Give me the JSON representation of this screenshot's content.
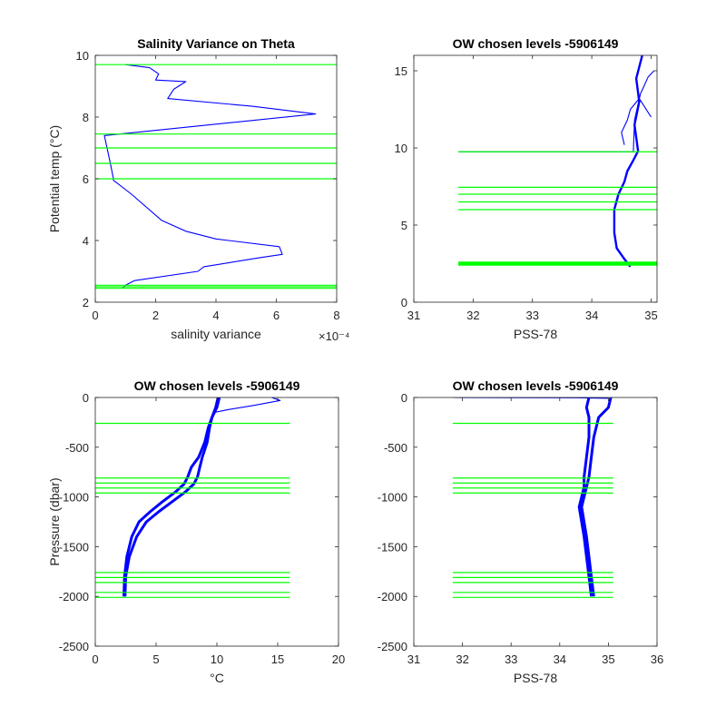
{
  "chart_data": [
    {
      "type": "line",
      "title": "Salinity Variance on Theta",
      "xlabel": "salinity variance",
      "ylabel": "Potential temp (°C)",
      "x_exponent_label": "×10⁻⁴",
      "xlim": [
        0,
        8
      ],
      "ylim": [
        2,
        10
      ],
      "xticks": [
        0,
        2,
        4,
        6,
        8
      ],
      "yticks": [
        2,
        4,
        6,
        8,
        10
      ],
      "grid": false,
      "colors": {
        "series": "#0000ff",
        "levels": "#00ff00"
      },
      "series": [
        {
          "x": [
            0.9,
            1.0,
            1.3,
            3.4,
            3.6,
            5.5,
            6.2,
            6.1,
            4.0,
            3.0,
            2.2,
            1.2,
            0.6,
            0.6,
            0.5,
            0.3,
            7.3,
            5.2,
            2.4,
            2.6,
            3.0,
            2.0,
            2.1,
            1.8,
            1.0
          ],
          "y": [
            2.45,
            2.55,
            2.7,
            3.0,
            3.15,
            3.45,
            3.55,
            3.8,
            4.05,
            4.3,
            4.65,
            5.5,
            5.95,
            6.0,
            6.5,
            7.4,
            8.1,
            8.35,
            8.6,
            8.9,
            9.15,
            9.2,
            9.4,
            9.6,
            9.7
          ]
        }
      ],
      "levels": [
        2.45,
        2.5,
        2.55,
        6.0,
        6.5,
        7.0,
        7.45,
        9.7
      ],
      "levels_xrange": [
        0,
        8
      ]
    },
    {
      "type": "line",
      "title": "OW chosen levels -5906149",
      "xlabel": "PSS-78",
      "ylabel": "",
      "xlim": [
        31,
        35.1
      ],
      "ylim": [
        0,
        16
      ],
      "xticks": [
        31,
        32,
        33,
        34,
        35
      ],
      "yticks": [
        0,
        5,
        10,
        15
      ],
      "grid": false,
      "colors": {
        "series": "#0000ff",
        "levels": "#00ff00"
      },
      "series": [
        {
          "x": [
            34.65,
            34.55,
            34.42,
            34.38,
            34.38,
            34.45,
            34.55,
            34.6,
            34.7,
            34.78,
            34.72,
            34.8,
            34.75,
            34.85
          ],
          "y": [
            2.3,
            2.8,
            3.5,
            4.5,
            6.0,
            7.0,
            7.8,
            8.5,
            9.2,
            9.8,
            11.5,
            13.0,
            14.5,
            16.0
          ]
        },
        {
          "x": [
            34.7,
            34.72,
            34.82,
            34.95,
            35.05
          ],
          "y": [
            9.8,
            11.8,
            13.5,
            14.6,
            15.0
          ]
        },
        {
          "x": [
            34.55,
            34.5,
            34.6,
            34.65,
            34.8,
            35.0
          ],
          "y": [
            10.2,
            11.0,
            11.8,
            12.5,
            13.2,
            12.0
          ]
        },
        {
          "x": [
            31.75,
            34.72
          ],
          "y": [
            9.75,
            9.75
          ]
        }
      ],
      "levels": [
        2.4,
        2.45,
        2.5,
        2.55,
        2.6,
        6.0,
        6.5,
        7.0,
        7.45,
        9.75
      ],
      "levels_xrange": [
        31.75,
        35.1
      ]
    },
    {
      "type": "line",
      "title": "OW chosen levels -5906149",
      "xlabel": "°C",
      "ylabel": "Pressure (dbar)",
      "xlim": [
        0,
        20
      ],
      "ylim": [
        -2500,
        0
      ],
      "xticks": [
        0,
        5,
        10,
        15,
        20
      ],
      "yticks": [
        -2500,
        -2000,
        -1500,
        -1000,
        -500,
        0
      ],
      "grid": false,
      "colors": {
        "series": "#0000ff",
        "levels": "#00ff00"
      },
      "series": [
        {
          "x": [
            2.35,
            2.4,
            2.6,
            3.0,
            3.6,
            4.5,
            5.5,
            6.6,
            7.3,
            7.6,
            7.9,
            8.5,
            9.0,
            9.3,
            9.6,
            10.0,
            10.2
          ],
          "y": [
            -2000,
            -1800,
            -1600,
            -1400,
            -1250,
            -1150,
            -1050,
            -950,
            -870,
            -800,
            -700,
            -600,
            -450,
            -300,
            -200,
            -100,
            0
          ]
        },
        {
          "x": [
            2.45,
            2.5,
            2.8,
            3.4,
            4.2,
            5.2,
            6.3,
            7.4,
            8.1,
            8.4,
            8.6,
            8.8,
            9.2,
            9.4,
            9.6,
            9.9,
            10.1
          ],
          "y": [
            -2000,
            -1800,
            -1600,
            -1400,
            -1250,
            -1150,
            -1050,
            -950,
            -870,
            -800,
            -700,
            -600,
            -450,
            -300,
            -200,
            -100,
            0
          ]
        },
        {
          "x": [
            9.8,
            11.0,
            13.0,
            15.2,
            14.5
          ],
          "y": [
            -150,
            -120,
            -80,
            -30,
            0
          ]
        }
      ],
      "levels": [
        -260,
        -810,
        -860,
        -910,
        -960,
        -1760,
        -1810,
        -1860,
        -1960,
        -2010
      ],
      "levels_xrange": [
        0,
        16
      ]
    },
    {
      "type": "line",
      "title": "OW chosen levels -5906149",
      "xlabel": "PSS-78",
      "ylabel": "",
      "xlim": [
        31,
        36
      ],
      "ylim": [
        -2500,
        0
      ],
      "xticks": [
        31,
        32,
        33,
        34,
        35,
        36
      ],
      "yticks": [
        -2500,
        -2000,
        -1500,
        -1000,
        -500,
        0
      ],
      "grid": false,
      "colors": {
        "series": "#0000ff",
        "levels": "#00ff00"
      },
      "series": [
        {
          "x": [
            34.65,
            34.6,
            34.55,
            34.5,
            34.45,
            34.4,
            34.45,
            34.5,
            34.5,
            34.55,
            34.6,
            34.6,
            34.55,
            34.6
          ],
          "y": [
            -2000,
            -1800,
            -1600,
            -1400,
            -1250,
            -1100,
            -1000,
            -900,
            -800,
            -600,
            -400,
            -200,
            -100,
            0
          ]
        },
        {
          "x": [
            34.7,
            34.65,
            34.6,
            34.55,
            34.5,
            34.45,
            34.5,
            34.55,
            34.6,
            34.65,
            34.7,
            34.8,
            35.0,
            35.05
          ],
          "y": [
            -2000,
            -1800,
            -1600,
            -1400,
            -1250,
            -1100,
            -1000,
            -900,
            -800,
            -600,
            -400,
            -200,
            -100,
            0
          ]
        },
        {
          "x": [
            31.8,
            33.0,
            34.5,
            35.0
          ],
          "y": [
            0,
            -2,
            -4,
            -8
          ]
        }
      ],
      "levels": [
        -260,
        -810,
        -860,
        -910,
        -960,
        -1760,
        -1810,
        -1860,
        -1960,
        -2010
      ],
      "levels_xrange": [
        31.8,
        35.1
      ]
    }
  ]
}
